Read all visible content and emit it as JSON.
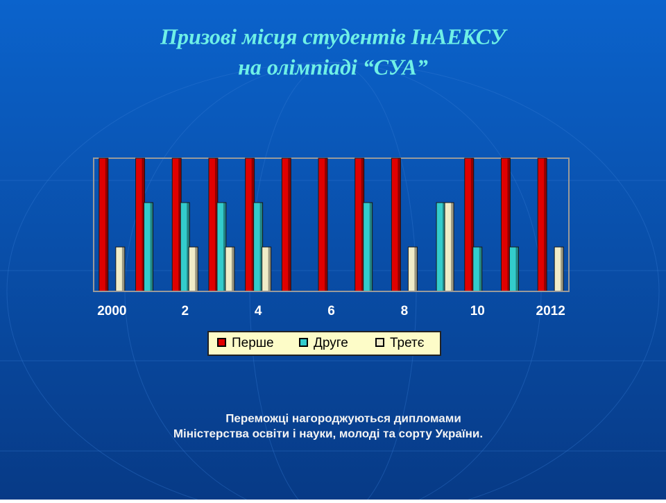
{
  "chart_data": {
    "type": "bar",
    "title": "Призові місця студентів ІнАЕКСУ",
    "subtitle": "на олімпіаді “СУА”",
    "categories": [
      "2000",
      null,
      "2",
      null,
      "4",
      null,
      "6",
      null,
      "8",
      null,
      "10",
      null,
      "2012"
    ],
    "series": [
      {
        "name": "Перше",
        "color": "#e00000",
        "values": [
          3,
          3,
          3,
          3,
          3,
          3,
          3,
          3,
          3,
          0,
          3,
          3,
          3
        ]
      },
      {
        "name": "Друге",
        "color": "#33cccc",
        "values": [
          0,
          2,
          2,
          2,
          2,
          0,
          0,
          2,
          0,
          2,
          1,
          1,
          0
        ]
      },
      {
        "name": "Третє",
        "color": "#f0ecc8",
        "values": [
          1,
          0,
          1,
          1,
          1,
          0,
          0,
          0,
          1,
          2,
          0,
          0,
          1
        ]
      }
    ],
    "ylim": [
      0,
      3
    ],
    "legend": "bottom",
    "notes": [
      "Переможці нагороджуються дипломами",
      "Міністерства освіти і науки, молоді та сорту України."
    ]
  }
}
